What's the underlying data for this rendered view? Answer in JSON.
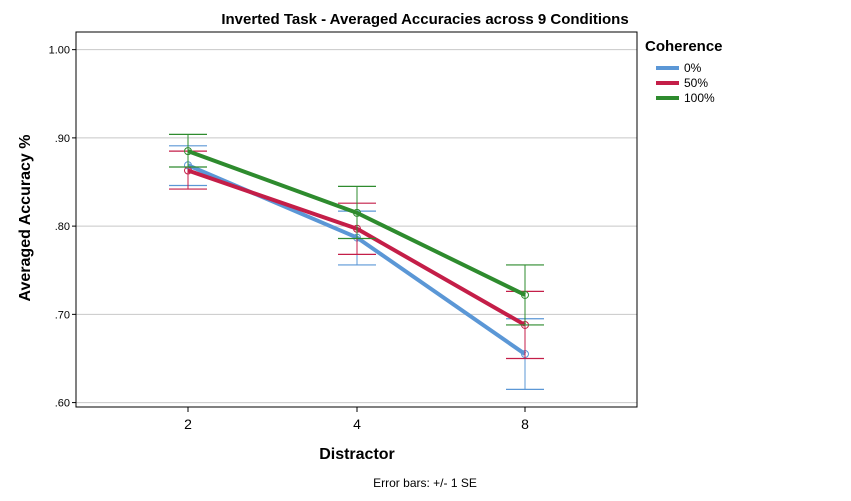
{
  "chart_data": {
    "type": "line",
    "title": "Inverted Task - Averaged Accuracies across 9 Conditions",
    "xlabel": "Distractor",
    "ylabel": "Averaged Accuracy %",
    "categories": [
      "2",
      "4",
      "8"
    ],
    "ylim": [
      0.595,
      1.02
    ],
    "yticks": [
      0.6,
      0.7,
      0.8,
      0.9,
      1.0
    ],
    "ytick_labels": [
      ".60",
      ".70",
      ".80",
      ".90",
      "1.00"
    ],
    "grid": true,
    "legend": {
      "title": "Coherence",
      "position": "top-right"
    },
    "series": [
      {
        "name": "0%",
        "color": "#5b97d6",
        "values": [
          0.869,
          0.787,
          0.655
        ],
        "err_low": [
          0.846,
          0.756,
          0.615
        ],
        "err_high": [
          0.891,
          0.817,
          0.695
        ]
      },
      {
        "name": "50%",
        "color": "#c41e48",
        "values": [
          0.863,
          0.797,
          0.688
        ],
        "err_low": [
          0.842,
          0.768,
          0.65
        ],
        "err_high": [
          0.885,
          0.826,
          0.726
        ]
      },
      {
        "name": "100%",
        "color": "#2e8b2e",
        "values": [
          0.885,
          0.815,
          0.722
        ],
        "err_low": [
          0.867,
          0.786,
          0.688
        ],
        "err_high": [
          0.904,
          0.845,
          0.756
        ]
      }
    ],
    "footnote": "Error bars: +/- 1 SE"
  }
}
